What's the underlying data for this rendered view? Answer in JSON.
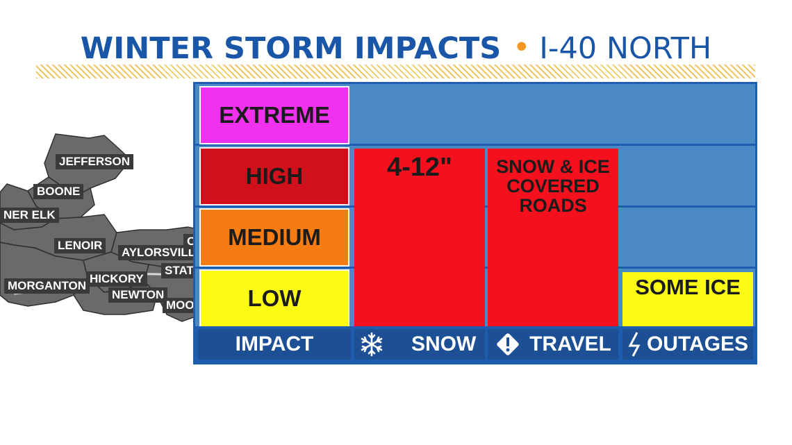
{
  "header": {
    "title": "WINTER STORM IMPACTS",
    "separator": "•",
    "subtitle": "I-40 NORTH"
  },
  "map": {
    "cities": [
      "JEFFERSON",
      "BOONE",
      "NER ELK",
      "LENOIR",
      "AYLORSVILLE",
      "OI",
      "STATE",
      "MORGANTON",
      "HICKORY",
      "NEWTON",
      "MOOR"
    ]
  },
  "levels": [
    {
      "label": "EXTREME",
      "color": "#f032ee"
    },
    {
      "label": "HIGH",
      "color": "#d0111b"
    },
    {
      "label": "MEDIUM",
      "color": "#f47c12"
    },
    {
      "label": "LOW",
      "color": "#fbfb14"
    }
  ],
  "columns": [
    {
      "label": "IMPACT",
      "icon": ""
    },
    {
      "label": "SNOW",
      "icon": "snowflake-icon",
      "value": "4-12\"",
      "level": "HIGH",
      "color": "#f4101c"
    },
    {
      "label": "TRAVEL",
      "icon": "warning-diamond-icon",
      "value": "SNOW & ICE COVERED ROADS",
      "value_lines": [
        "SNOW & ICE",
        "COVERED",
        "ROADS"
      ],
      "level": "HIGH",
      "color": "#f4101c"
    },
    {
      "label": "OUTAGES",
      "icon": "lightning-icon",
      "value": "SOME ICE",
      "level": "LOW",
      "color": "#fbfb14"
    }
  ],
  "colors": {
    "title_blue": "#1a56a8",
    "dot_orange": "#f5961e",
    "board_blue": "#4a88c6",
    "border_blue": "#1d5cae"
  }
}
